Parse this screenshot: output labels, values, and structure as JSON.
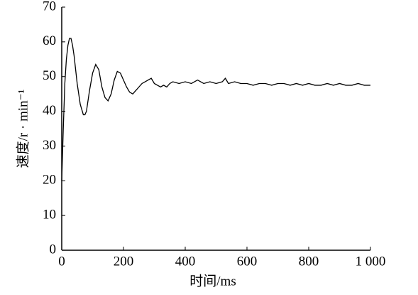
{
  "chart_data": {
    "type": "line",
    "x_label": "时间/ms",
    "y_label": "速度/r · min⁻¹",
    "x": [
      0,
      5,
      10,
      15,
      20,
      25,
      30,
      35,
      40,
      50,
      60,
      70,
      75,
      80,
      90,
      100,
      110,
      120,
      130,
      140,
      150,
      160,
      170,
      180,
      190,
      200,
      210,
      220,
      230,
      240,
      250,
      260,
      270,
      280,
      290,
      300,
      310,
      320,
      330,
      340,
      350,
      360,
      380,
      400,
      420,
      440,
      460,
      480,
      500,
      520,
      530,
      540,
      560,
      580,
      600,
      620,
      640,
      660,
      680,
      700,
      720,
      740,
      760,
      780,
      800,
      820,
      840,
      860,
      880,
      900,
      920,
      940,
      960,
      980,
      1000
    ],
    "series": [
      {
        "name": "speed",
        "color": "#000000",
        "values": [
          20,
          35,
          48,
          55,
          59,
          61,
          61,
          59,
          56,
          48,
          42,
          39,
          39,
          40,
          46,
          51,
          53.5,
          52,
          47,
          44,
          43,
          45,
          49,
          51.5,
          51,
          49,
          47,
          45.5,
          45,
          46,
          47,
          48,
          48.5,
          49,
          49.5,
          48,
          47.5,
          47,
          47.5,
          47,
          48,
          48.5,
          48,
          48.5,
          48,
          49,
          48,
          48.5,
          48,
          48.5,
          49.5,
          48,
          48.5,
          48,
          48,
          47.5,
          48,
          48,
          47.5,
          48,
          48,
          47.5,
          48,
          47.5,
          48,
          47.5,
          47.5,
          48,
          47.5,
          48,
          47.5,
          47.5,
          48,
          47.5,
          47.5
        ]
      }
    ],
    "xlim": [
      0,
      1000
    ],
    "ylim": [
      0,
      70
    ],
    "xticks": [
      0,
      200,
      400,
      600,
      800,
      {
        "value": 1000,
        "label": "1 000"
      }
    ],
    "yticks": [
      0,
      10,
      20,
      30,
      40,
      50,
      60,
      70
    ]
  }
}
